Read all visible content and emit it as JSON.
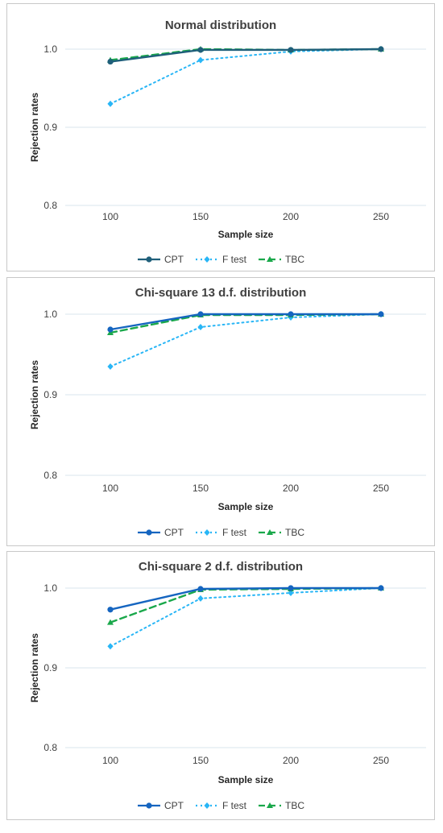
{
  "colors": {
    "cpt_dark": "#1f5f7a",
    "cpt_blue": "#1565c0",
    "ftest": "#29b6f6",
    "tbc": "#1aa84b",
    "grid": "#d9e6ee"
  },
  "chart_data": [
    {
      "type": "line",
      "title": "Normal distribution",
      "xlabel": "Sample size",
      "ylabel": "Rejection rates",
      "categories": [
        "100",
        "150",
        "200",
        "250"
      ],
      "yticks": [
        "0.8",
        "0.9",
        "1.0"
      ],
      "ylim": [
        0.8,
        1.0
      ],
      "legend_position": "bottom",
      "series": [
        {
          "name": "CPT",
          "values": [
            0.984,
            0.999,
            0.999,
            1.0
          ],
          "color": "#1f5f7a",
          "dash": "solid",
          "marker": "circle"
        },
        {
          "name": "F test",
          "values": [
            0.93,
            0.986,
            0.997,
            1.0
          ],
          "color": "#29b6f6",
          "dash": "dotted",
          "marker": "diamond"
        },
        {
          "name": "TBC",
          "values": [
            0.986,
            1.0,
            0.999,
            1.0
          ],
          "color": "#1aa84b",
          "dash": "dashed",
          "marker": "triangle"
        }
      ]
    },
    {
      "type": "line",
      "title": "Chi-square 13 d.f. distribution",
      "xlabel": "Sample size",
      "ylabel": "Rejection rates",
      "categories": [
        "100",
        "150",
        "200",
        "250"
      ],
      "yticks": [
        "0.8",
        "0.9",
        "1.0"
      ],
      "ylim": [
        0.8,
        1.0
      ],
      "legend_position": "bottom",
      "series": [
        {
          "name": "CPT",
          "values": [
            0.981,
            1.0,
            1.0,
            1.0
          ],
          "color": "#1565c0",
          "dash": "solid",
          "marker": "circle"
        },
        {
          "name": "F test",
          "values": [
            0.935,
            0.984,
            0.996,
            1.0
          ],
          "color": "#29b6f6",
          "dash": "dotted",
          "marker": "diamond"
        },
        {
          "name": "TBC",
          "values": [
            0.977,
            0.999,
            0.999,
            1.0
          ],
          "color": "#1aa84b",
          "dash": "dashed",
          "marker": "triangle"
        }
      ]
    },
    {
      "type": "line",
      "title": "Chi-square 2 d.f. distribution",
      "xlabel": "Sample size",
      "ylabel": "Rejection rates",
      "categories": [
        "100",
        "150",
        "200",
        "250"
      ],
      "yticks": [
        "0.8",
        "0.9",
        "1.0"
      ],
      "ylim": [
        0.8,
        1.0
      ],
      "legend_position": "bottom",
      "series": [
        {
          "name": "CPT",
          "values": [
            0.973,
            0.999,
            1.0,
            1.0
          ],
          "color": "#1565c0",
          "dash": "solid",
          "marker": "circle"
        },
        {
          "name": "F test",
          "values": [
            0.927,
            0.987,
            0.994,
            1.0
          ],
          "color": "#29b6f6",
          "dash": "dotted",
          "marker": "diamond"
        },
        {
          "name": "TBC",
          "values": [
            0.957,
            0.998,
            0.999,
            1.0
          ],
          "color": "#1aa84b",
          "dash": "dashed",
          "marker": "triangle"
        }
      ]
    }
  ]
}
